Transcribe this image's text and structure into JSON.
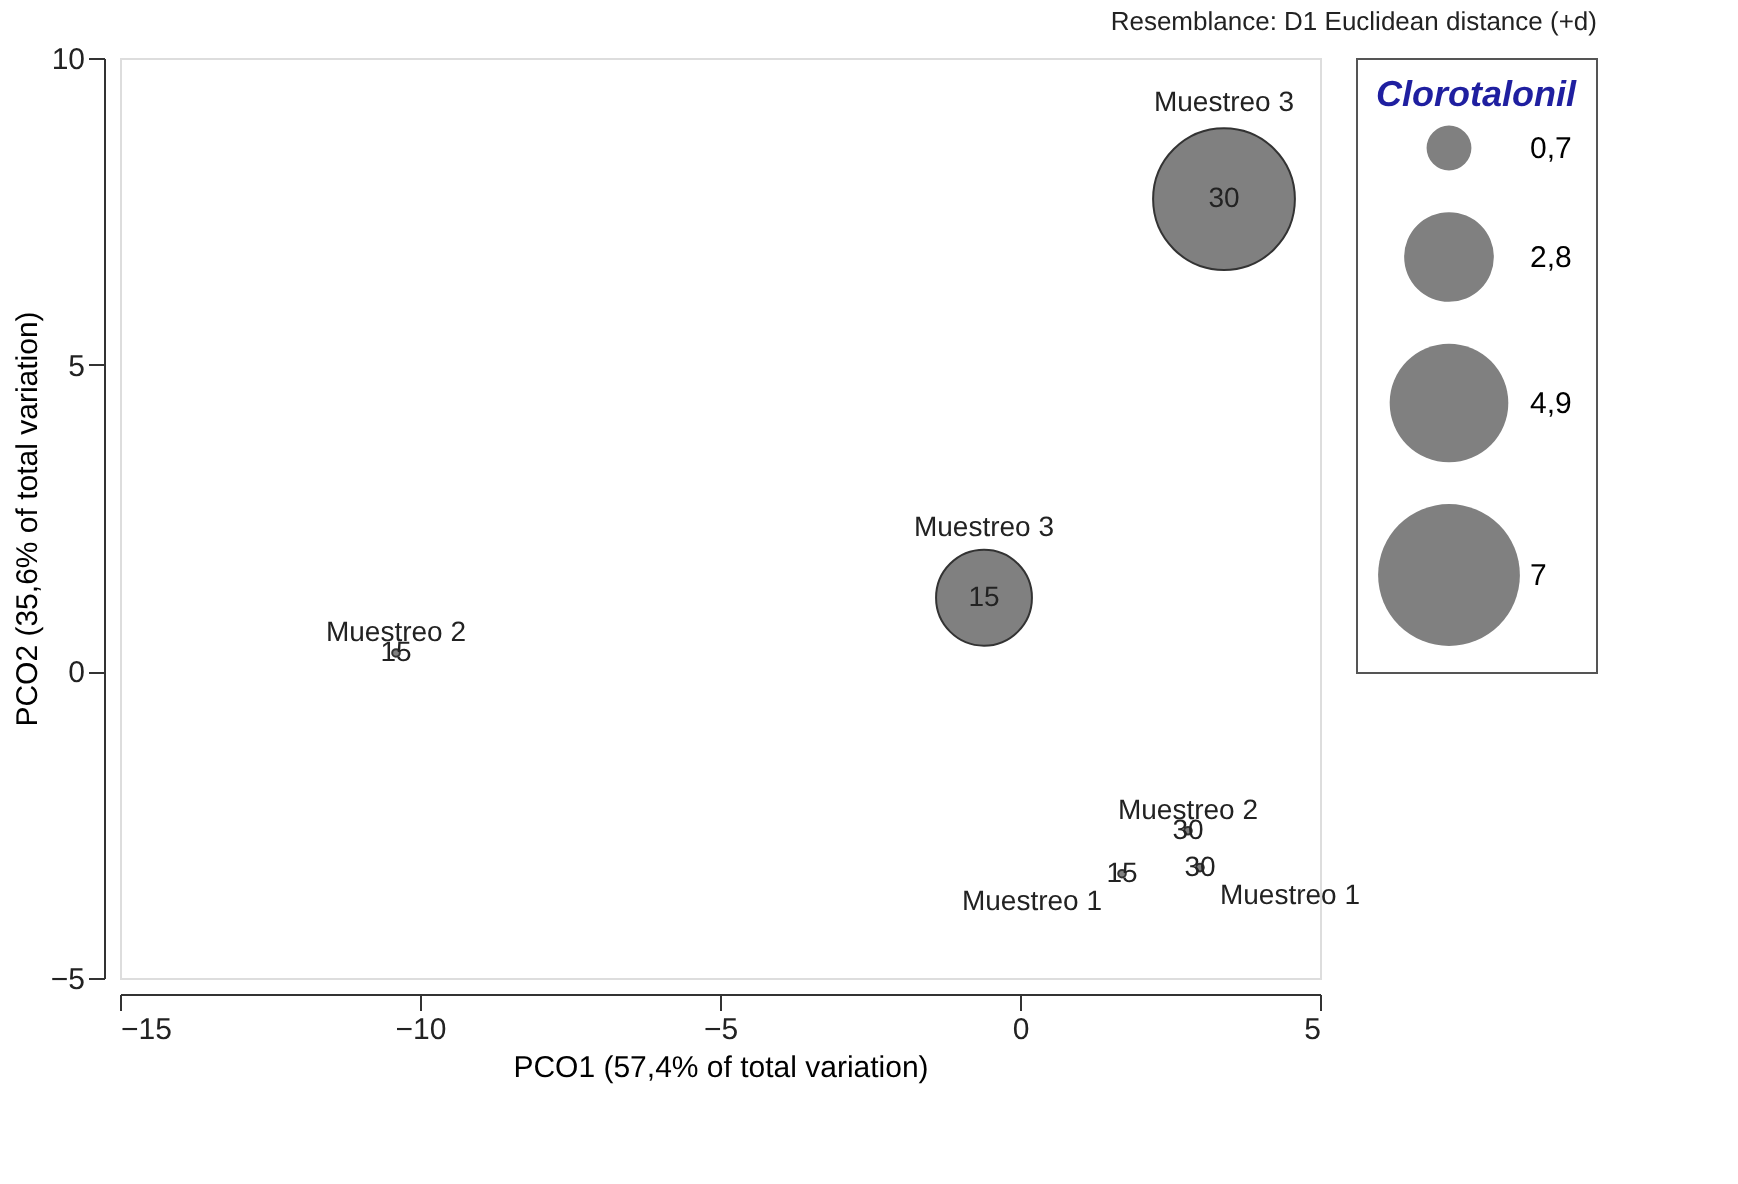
{
  "chart_data": {
    "type": "bubble",
    "title": "Resemblance: D1 Euclidean distance (+d)",
    "xlabel": "PCO1 (57,4% of total variation)",
    "ylabel": "PCO2 (35,6% of total variation)",
    "legend_title": "Clorotalonil",
    "x": [
      3.4,
      -0.6,
      -10.4,
      2.8,
      3.0,
      1.7
    ],
    "values": [
      7.7,
      1.2,
      0.3,
      -2.6,
      -3.2,
      -3.3
    ],
    "sizes": [
      7,
      3.2,
      0.02,
      0.02,
      0.02,
      0.02
    ],
    "size_legend": [
      {
        "value": 0.7,
        "label": "0,7"
      },
      {
        "value": 2.8,
        "label": "2,8"
      },
      {
        "value": 4.9,
        "label": "4,9"
      },
      7
    ],
    "color": "#808080",
    "xlim": [
      -15,
      5
    ],
    "xticks": [
      -15,
      -10,
      -5,
      0,
      5
    ],
    "ylim": [
      -5,
      10
    ],
    "yticks": [
      -5,
      0,
      5,
      10
    ],
    "grid": false,
    "annotations": [
      {
        "text": "30",
        "x": 3.4,
        "y": 7.7
      },
      {
        "text": "15",
        "x": -0.6,
        "y": 1.2
      },
      {
        "text": "15",
        "x": -10.4,
        "y": 0.3
      },
      {
        "text": "30",
        "x": 2.8,
        "y": -2.6
      },
      {
        "text": "30",
        "x": 3.0,
        "y": -3.2
      },
      {
        "text": "15",
        "x": 1.7,
        "y": -3.3
      },
      {
        "text": "Muestreo 3",
        "x": 3.4,
        "y": 7.7
      },
      {
        "text": "Muestreo 3",
        "x": -0.6,
        "y": 1.2
      },
      {
        "text": "Muestreo 2",
        "x": -10.4,
        "y": 0.3
      },
      {
        "text": "Muestreo 2",
        "x": 2.8,
        "y": -2.6
      },
      {
        "text": "Muestreo 1",
        "x": 3.0,
        "y": -3.2
      },
      {
        "text": "Muestreo 1",
        "x": 1.7,
        "y": -3.3
      }
    ]
  }
}
